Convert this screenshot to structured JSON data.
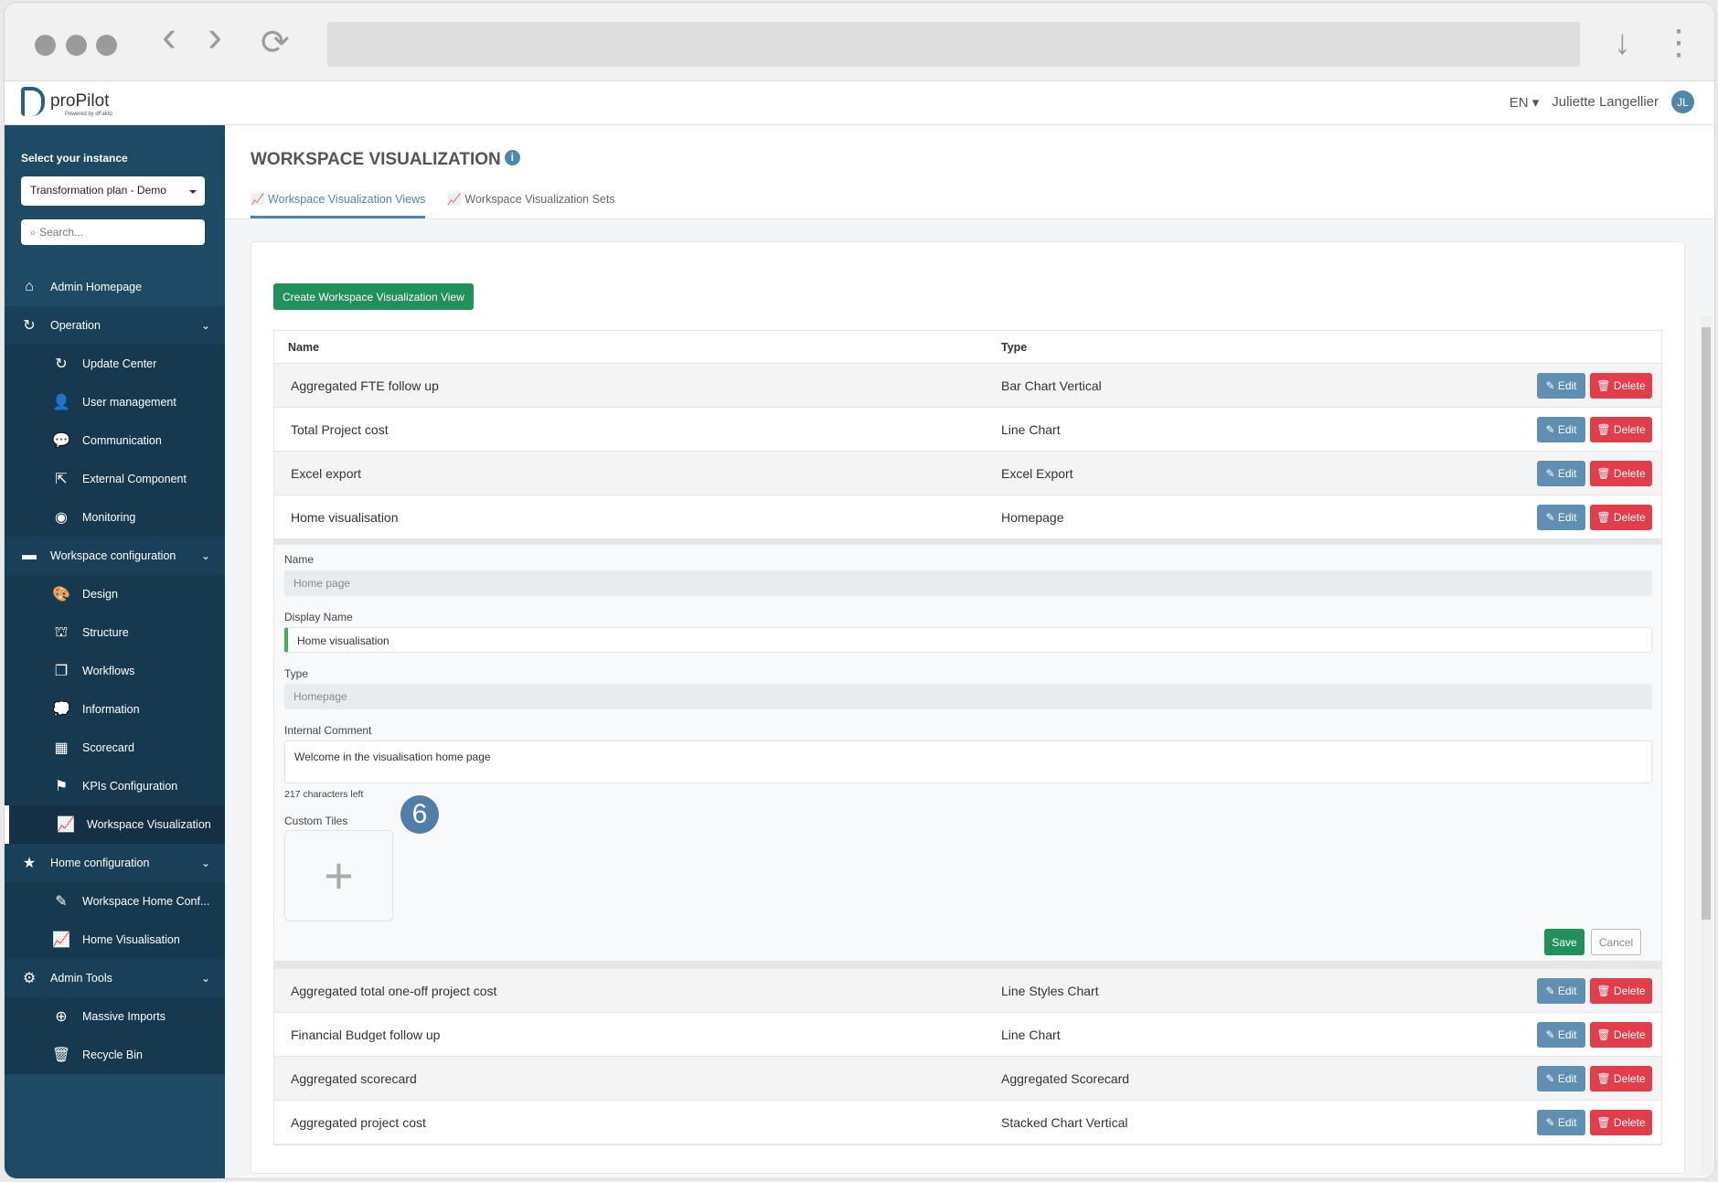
{
  "browser": {
    "back": "‹",
    "forward": "›",
    "reload": "⟳",
    "download": "↓",
    "menu": "⋮"
  },
  "header": {
    "logo_text": "proPilot",
    "logo_sub": "Powered by dFakto",
    "language": "EN",
    "user_name": "Juliette Langellier",
    "user_initials": "JL"
  },
  "sidebar": {
    "instance_label": "Select your instance",
    "instance_value": "Transformation plan - Demo",
    "search_placeholder": "Search...",
    "items": [
      {
        "label": "Admin Homepage",
        "icon": "home-icon",
        "glyph": "⌂",
        "kind": "top"
      },
      {
        "label": "Operation",
        "icon": "refresh-icon",
        "glyph": "↻",
        "kind": "group"
      },
      {
        "label": "Update Center",
        "icon": "refresh-icon",
        "glyph": "↻",
        "kind": "sub"
      },
      {
        "label": "User management",
        "icon": "user-icon",
        "glyph": "👤",
        "kind": "sub"
      },
      {
        "label": "Communication",
        "icon": "comments-icon",
        "glyph": "💬",
        "kind": "sub"
      },
      {
        "label": "External Component",
        "icon": "external-link-icon",
        "glyph": "⇱",
        "kind": "sub"
      },
      {
        "label": "Monitoring",
        "icon": "eye-icon",
        "glyph": "◉",
        "kind": "sub"
      },
      {
        "label": "Workspace configuration",
        "icon": "folder-icon",
        "glyph": "▬",
        "kind": "group"
      },
      {
        "label": "Design",
        "icon": "palette-icon",
        "glyph": "🎨",
        "kind": "sub"
      },
      {
        "label": "Structure",
        "icon": "sitemap-icon",
        "glyph": "⛫",
        "kind": "sub"
      },
      {
        "label": "Workflows",
        "icon": "copy-icon",
        "glyph": "❐",
        "kind": "sub"
      },
      {
        "label": "Information",
        "icon": "comment-icon",
        "glyph": "💭",
        "kind": "sub"
      },
      {
        "label": "Scorecard",
        "icon": "table-icon",
        "glyph": "▦",
        "kind": "sub"
      },
      {
        "label": "KPIs Configuration",
        "icon": "flag-icon",
        "glyph": "⚑",
        "kind": "sub"
      },
      {
        "label": "Workspace Visualization",
        "icon": "line-chart-icon",
        "glyph": "📈",
        "kind": "sub",
        "active": true
      },
      {
        "label": "Home configuration",
        "icon": "star-icon",
        "glyph": "★",
        "kind": "group"
      },
      {
        "label": "Workspace Home Conf...",
        "icon": "edit-icon",
        "glyph": "✎",
        "kind": "sub"
      },
      {
        "label": "Home Visualisation",
        "icon": "line-chart-icon",
        "glyph": "📈",
        "kind": "sub"
      },
      {
        "label": "Admin Tools",
        "icon": "gear-icon",
        "glyph": "⚙",
        "kind": "group"
      },
      {
        "label": "Massive Imports",
        "icon": "download-icon",
        "glyph": "⊕",
        "kind": "sub"
      },
      {
        "label": "Recycle Bin",
        "icon": "trash-icon",
        "glyph": "🗑",
        "kind": "sub"
      }
    ]
  },
  "page": {
    "title": "WORKSPACE VISUALIZATION",
    "info_icon": "i",
    "tabs": [
      {
        "label": "Workspace Visualization Views",
        "active": true
      },
      {
        "label": "Workspace Visualization Sets"
      }
    ],
    "create_button": "Create Workspace Visualization View",
    "columns": [
      "Name",
      "Type"
    ],
    "edit_label": "Edit",
    "delete_label": "Delete",
    "rows_before": [
      {
        "name": "Aggregated FTE follow up",
        "type": "Bar Chart Vertical"
      },
      {
        "name": "Total Project cost",
        "type": "Line Chart"
      },
      {
        "name": "Excel export",
        "type": "Excel Export"
      },
      {
        "name": "Home visualisation",
        "type": "Homepage"
      }
    ],
    "form": {
      "name_label": "Name",
      "name_value": "Home page",
      "display_label": "Display Name",
      "display_value": "Home visualisation",
      "type_label": "Type",
      "type_value": "Homepage",
      "comment_label": "Internal Comment",
      "comment_value": "Welcome in the visualisation home page",
      "chars_left": "217 characters left",
      "tiles_label": "Custom Tiles",
      "add_tile": "+",
      "step_badge": "6",
      "save": "Save",
      "cancel": "Cancel"
    },
    "rows_after": [
      {
        "name": "Aggregated total one-off project cost",
        "type": "Line Styles Chart"
      },
      {
        "name": "Financial Budget follow up",
        "type": "Line Chart"
      },
      {
        "name": "Aggregated scorecard",
        "type": "Aggregated Scorecard"
      },
      {
        "name": "Aggregated project cost",
        "type": "Stacked Chart Vertical"
      }
    ]
  },
  "colors": {
    "sidebar": "#1f4a66",
    "accent": "#4f86ab",
    "success": "#22905a",
    "danger": "#e23d4b"
  }
}
